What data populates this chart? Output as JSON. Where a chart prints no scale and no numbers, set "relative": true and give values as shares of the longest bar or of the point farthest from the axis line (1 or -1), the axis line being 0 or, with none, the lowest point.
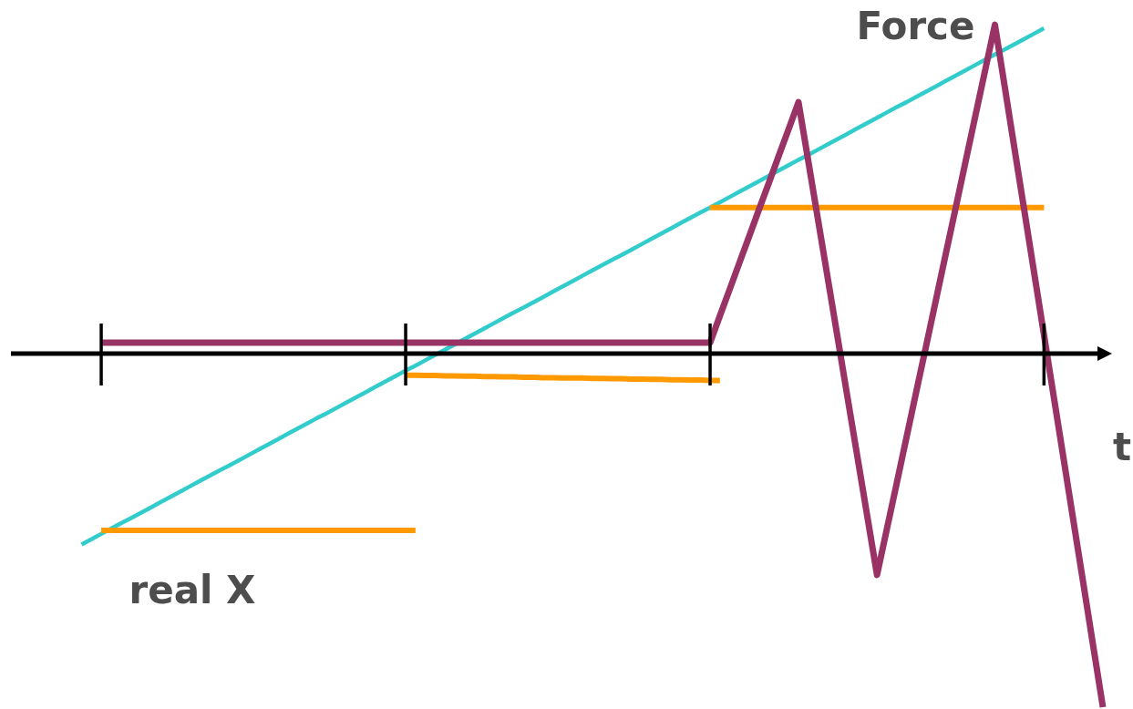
{
  "chart_data": {
    "type": "line",
    "relative": true,
    "xlabel": "t",
    "marker": "none",
    "categories": [
      null,
      null,
      null,
      null,
      null,
      null,
      null,
      null,
      null,
      null,
      null,
      null,
      null,
      null,
      null,
      null,
      null,
      null,
      null,
      null,
      null,
      null,
      null,
      null,
      null,
      null,
      null,
      null,
      null,
      null,
      null,
      null,
      null,
      null,
      null,
      null,
      null,
      null,
      null,
      null,
      null,
      null,
      null,
      null,
      null,
      null,
      null,
      null,
      null,
      null,
      null,
      null,
      null,
      null,
      null,
      null,
      null,
      null,
      null,
      null,
      null,
      null,
      null,
      null,
      null,
      null,
      null,
      null,
      null,
      null,
      null,
      null,
      null,
      null,
      null,
      null,
      null,
      null,
      null,
      null,
      null,
      null,
      null,
      null,
      null,
      null,
      null,
      null,
      null,
      null,
      null,
      null,
      null,
      null,
      null,
      null,
      null,
      null,
      null,
      null,
      null,
      null,
      null,
      null,
      null
    ],
    "series": [
      {
        "name": "real X",
        "color": "#33cccc",
        "values": [
          -0.54,
          -0.525,
          -0.51,
          -0.495,
          -0.48,
          -0.466,
          -0.451,
          -0.436,
          -0.421,
          -0.406,
          -0.391,
          -0.376,
          -0.361,
          -0.346,
          -0.331,
          -0.317,
          -0.302,
          -0.287,
          -0.272,
          -0.257,
          -0.242,
          -0.227,
          -0.212,
          -0.197,
          -0.182,
          -0.168,
          -0.153,
          -0.138,
          -0.123,
          -0.108,
          -0.093,
          -0.078,
          -0.063,
          -0.048,
          -0.034,
          -0.019,
          -0.004,
          0.011,
          0.026,
          0.041,
          0.056,
          0.071,
          0.086,
          0.101,
          0.116,
          0.13,
          0.145,
          0.16,
          0.175,
          0.19,
          0.205,
          0.22,
          0.235,
          0.25,
          0.265,
          0.279,
          0.294,
          0.309,
          0.324,
          0.339,
          0.354,
          0.369,
          0.384,
          0.399,
          0.413,
          0.428,
          0.443,
          0.458,
          0.473,
          0.488,
          0.503,
          0.518,
          0.533,
          0.548,
          0.562,
          0.577,
          0.592,
          0.607,
          0.622,
          0.637,
          0.652,
          0.667,
          0.682,
          0.697,
          0.711,
          0.726,
          0.741,
          0.756,
          0.771,
          0.786,
          0.801,
          0.816,
          0.831,
          0.846,
          0.86,
          0.875,
          0.89,
          0.905,
          0.92,
          null,
          null,
          null,
          null,
          null,
          null
        ]
      },
      {
        "color": "#ff9900",
        "values": [
          null,
          null,
          -0.5,
          -0.5,
          -0.5,
          -0.5,
          -0.5,
          -0.5,
          -0.5,
          -0.5,
          -0.5,
          -0.5,
          -0.5,
          -0.5,
          -0.5,
          -0.5,
          -0.5,
          -0.5,
          -0.5,
          -0.5,
          -0.5,
          -0.5,
          -0.5,
          -0.5,
          -0.5,
          -0.5,
          -0.5,
          -0.5,
          -0.5,
          -0.5,
          -0.5,
          -0.5,
          -0.5,
          -0.5,
          -0.5,
          null,
          null,
          null,
          null,
          null,
          null,
          null,
          null,
          null,
          null,
          null,
          null,
          null,
          null,
          null,
          null,
          null,
          null,
          null,
          null,
          null,
          null,
          null,
          null,
          null,
          null,
          null,
          null,
          null,
          null,
          null,
          null,
          null,
          null,
          null,
          null,
          null,
          null,
          null,
          null,
          null,
          null,
          null,
          null,
          null,
          null,
          null,
          null,
          null,
          null,
          null,
          null,
          null,
          null,
          null,
          null,
          null,
          null,
          null,
          null,
          null,
          null,
          null,
          null,
          null,
          null,
          null,
          null,
          null,
          null
        ]
      },
      {
        "color": "#ff9900",
        "values": [
          null,
          null,
          null,
          null,
          null,
          null,
          null,
          null,
          null,
          null,
          null,
          null,
          null,
          null,
          null,
          null,
          null,
          null,
          null,
          null,
          null,
          null,
          null,
          null,
          null,
          null,
          null,
          null,
          null,
          null,
          null,
          null,
          null,
          -0.061,
          -0.061,
          -0.062,
          -0.062,
          -0.063,
          -0.063,
          -0.064,
          -0.064,
          -0.065,
          -0.065,
          -0.066,
          -0.066,
          -0.067,
          -0.067,
          -0.068,
          -0.068,
          -0.069,
          -0.069,
          -0.069,
          -0.07,
          -0.07,
          -0.071,
          -0.071,
          -0.072,
          -0.072,
          -0.073,
          -0.073,
          -0.074,
          -0.074,
          -0.075,
          -0.075,
          -0.076,
          -0.076,
          null,
          null,
          null,
          null,
          null,
          null,
          null,
          null,
          null,
          null,
          null,
          null,
          null,
          null,
          null,
          null,
          null,
          null,
          null,
          null,
          null,
          null,
          null,
          null,
          null,
          null,
          null,
          null,
          null,
          null,
          null,
          null,
          null,
          null,
          null,
          null,
          null,
          null,
          null
        ]
      },
      {
        "color": "#ff9900",
        "values": [
          null,
          null,
          null,
          null,
          null,
          null,
          null,
          null,
          null,
          null,
          null,
          null,
          null,
          null,
          null,
          null,
          null,
          null,
          null,
          null,
          null,
          null,
          null,
          null,
          null,
          null,
          null,
          null,
          null,
          null,
          null,
          null,
          null,
          null,
          null,
          null,
          null,
          null,
          null,
          null,
          null,
          null,
          null,
          null,
          null,
          null,
          null,
          null,
          null,
          null,
          null,
          null,
          null,
          null,
          null,
          null,
          null,
          null,
          null,
          null,
          null,
          null,
          null,
          null,
          0.413,
          0.413,
          0.413,
          0.413,
          0.413,
          0.413,
          0.413,
          0.413,
          0.413,
          0.413,
          0.413,
          0.413,
          0.413,
          0.413,
          0.413,
          0.413,
          0.413,
          0.413,
          0.413,
          0.413,
          0.413,
          0.413,
          0.413,
          0.413,
          0.413,
          0.413,
          0.413,
          0.413,
          0.413,
          0.413,
          0.413,
          0.413,
          0.413,
          0.413,
          0.413,
          null,
          null,
          null,
          null,
          null,
          null
        ]
      },
      {
        "name": "Force",
        "color": "#993366",
        "values": [
          null,
          null,
          0.031,
          0.031,
          0.031,
          0.031,
          0.031,
          0.031,
          0.031,
          0.031,
          0.031,
          0.031,
          0.031,
          0.031,
          0.031,
          0.031,
          0.031,
          0.031,
          0.031,
          0.031,
          0.031,
          0.031,
          0.031,
          0.031,
          0.031,
          0.031,
          0.031,
          0.031,
          0.031,
          0.031,
          0.031,
          0.031,
          0.031,
          0.031,
          0.031,
          0.031,
          0.031,
          0.031,
          0.031,
          0.031,
          0.031,
          0.031,
          0.031,
          0.031,
          0.031,
          0.031,
          0.031,
          0.031,
          0.031,
          0.031,
          0.031,
          0.031,
          0.031,
          0.031,
          0.031,
          0.031,
          0.031,
          0.031,
          0.031,
          0.031,
          0.031,
          0.031,
          0.031,
          0.031,
          0.031,
          0.107,
          0.182,
          0.258,
          0.333,
          0.409,
          0.484,
          0.56,
          0.635,
          0.711,
          0.544,
          0.377,
          0.21,
          0.043,
          -0.125,
          -0.292,
          -0.459,
          -0.626,
          -0.496,
          -0.367,
          -0.237,
          -0.107,
          0.022,
          0.152,
          0.282,
          0.411,
          0.541,
          0.671,
          0.8,
          0.93,
          0.755,
          0.579,
          0.404,
          0.228,
          0.053,
          -0.123,
          -0.298,
          -0.474,
          -0.649,
          -0.825,
          -1
        ]
      }
    ]
  }
}
